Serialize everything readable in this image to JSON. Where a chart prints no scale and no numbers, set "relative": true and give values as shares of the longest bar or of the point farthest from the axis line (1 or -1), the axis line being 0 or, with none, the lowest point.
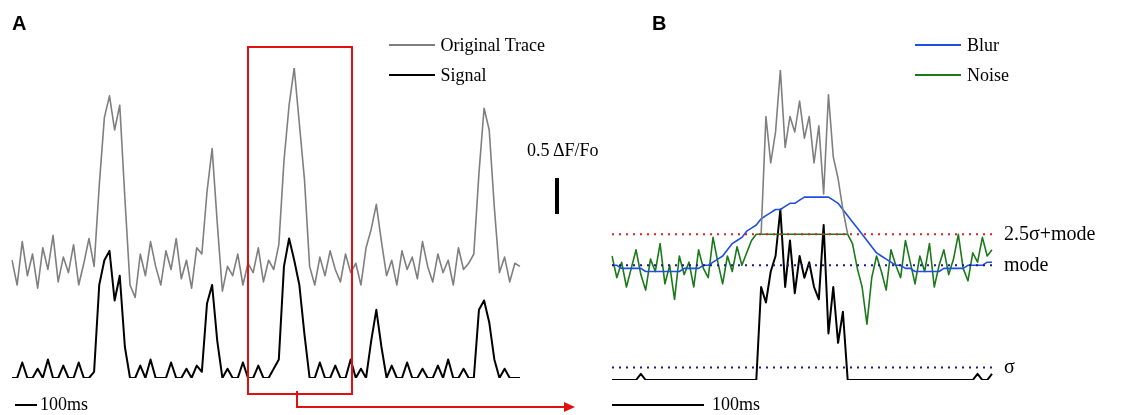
{
  "chart_data": [
    {
      "type": "line",
      "title": "A",
      "relative": true,
      "marker": "none",
      "legend": "top right",
      "categories": [
        null,
        null,
        null,
        null,
        null,
        null,
        null,
        null,
        null,
        null,
        null,
        null,
        null,
        null,
        null,
        null,
        null,
        null,
        null,
        null,
        null,
        null,
        null,
        null,
        null,
        null,
        null,
        null,
        null,
        null,
        null,
        null,
        null,
        null,
        null,
        null,
        null,
        null,
        null,
        null,
        null,
        null,
        null,
        null,
        null,
        null,
        null,
        null,
        null,
        null,
        null,
        null,
        null,
        null,
        null,
        null,
        null,
        null,
        null,
        null,
        null,
        null,
        null,
        null,
        null,
        null,
        null,
        null,
        null,
        null,
        null,
        null,
        null,
        null,
        null,
        null,
        null,
        null,
        null,
        null,
        null,
        null,
        null,
        null,
        null,
        null,
        null,
        null,
        null,
        null,
        null,
        null,
        null,
        null,
        null,
        null,
        null,
        null,
        null,
        null
      ],
      "series": [
        {
          "name": "Original Trace",
          "color": "#7f7f7f",
          "values": [
            0.38,
            0.3,
            0.44,
            0.33,
            0.4,
            0.29,
            0.42,
            0.35,
            0.46,
            0.31,
            0.39,
            0.34,
            0.43,
            0.3,
            0.37,
            0.45,
            0.36,
            0.62,
            0.84,
            0.91,
            0.8,
            0.88,
            0.58,
            0.3,
            0.26,
            0.4,
            0.33,
            0.44,
            0.36,
            0.3,
            0.41,
            0.35,
            0.45,
            0.32,
            0.38,
            0.29,
            0.42,
            0.4,
            0.6,
            0.74,
            0.5,
            0.28,
            0.36,
            0.33,
            0.4,
            0.3,
            0.37,
            0.34,
            0.42,
            0.31,
            0.38,
            0.35,
            0.43,
            0.7,
            0.88,
            1.0,
            0.82,
            0.64,
            0.36,
            0.3,
            0.39,
            0.33,
            0.41,
            0.35,
            0.31,
            0.4,
            0.34,
            0.37,
            0.3,
            0.42,
            0.48,
            0.56,
            0.44,
            0.33,
            0.38,
            0.3,
            0.41,
            0.35,
            0.39,
            0.32,
            0.44,
            0.36,
            0.31,
            0.4,
            0.34,
            0.38,
            0.3,
            0.42,
            0.35,
            0.37,
            0.4,
            0.66,
            0.87,
            0.8,
            0.55,
            0.34,
            0.39,
            0.31,
            0.37,
            0.36
          ]
        },
        {
          "name": "Signal",
          "color": "#000000",
          "values": [
            0,
            0,
            0.05,
            0,
            0,
            0.03,
            0,
            0.06,
            0,
            0,
            0.04,
            0,
            0,
            0.05,
            0,
            0,
            0.02,
            0.3,
            0.38,
            0.41,
            0.25,
            0.33,
            0.1,
            0,
            0,
            0.04,
            0,
            0.06,
            0,
            0,
            0,
            0.05,
            0,
            0,
            0.03,
            0,
            0.04,
            0.02,
            0.24,
            0.3,
            0.12,
            0,
            0.03,
            0,
            0,
            0.05,
            0,
            0,
            0.04,
            0,
            0,
            0.03,
            0.06,
            0.36,
            0.45,
            0.38,
            0.3,
            0.14,
            0,
            0,
            0.05,
            0,
            0,
            0.04,
            0,
            0,
            0.06,
            0,
            0.03,
            0,
            0.12,
            0.22,
            0.1,
            0,
            0.04,
            0,
            0,
            0.05,
            0,
            0,
            0.03,
            0,
            0,
            0.04,
            0,
            0.06,
            0,
            0,
            0.03,
            0,
            0,
            0.22,
            0.25,
            0.18,
            0.06,
            0,
            0.03,
            0,
            0,
            0
          ]
        }
      ],
      "annotations": [
        "0.5 ΔF/Fo",
        "100ms"
      ]
    },
    {
      "type": "line",
      "title": "B",
      "relative": true,
      "marker": "none",
      "legend": "top right",
      "categories": [
        null,
        null,
        null,
        null,
        null,
        null,
        null,
        null,
        null,
        null,
        null,
        null,
        null,
        null,
        null,
        null,
        null,
        null,
        null,
        null,
        null,
        null,
        null,
        null,
        null,
        null,
        null,
        null,
        null,
        null,
        null,
        null,
        null,
        null,
        null,
        null,
        null,
        null,
        null,
        null,
        null,
        null,
        null,
        null,
        null,
        null,
        null,
        null,
        null,
        null,
        null,
        null,
        null,
        null,
        null,
        null,
        null,
        null,
        null,
        null,
        null,
        null,
        null,
        null,
        null,
        null,
        null,
        null,
        null,
        null,
        null,
        null,
        null,
        null,
        null,
        null,
        null,
        null,
        null,
        null
      ],
      "series": [
        {
          "color": "#7f7f7f",
          "values": [
            null,
            null,
            null,
            null,
            null,
            null,
            null,
            null,
            null,
            null,
            null,
            null,
            null,
            null,
            null,
            null,
            null,
            null,
            null,
            null,
            null,
            null,
            null,
            null,
            null,
            null,
            null,
            null,
            null,
            null,
            null,
            0.47,
            0.85,
            0.7,
            0.8,
            1.0,
            0.75,
            0.85,
            0.8,
            0.9,
            0.78,
            0.85,
            0.7,
            0.82,
            0.6,
            0.92,
            0.72,
            0.65,
            0.55,
            0.47,
            null,
            null,
            null,
            null,
            null,
            null,
            null,
            null,
            null,
            null,
            null,
            null,
            null,
            null,
            null,
            null,
            null,
            null,
            null,
            null,
            null,
            null,
            null,
            null,
            null,
            null,
            null,
            null,
            null,
            null
          ]
        },
        {
          "name": "Blur",
          "color": "#1f4fe0",
          "values": [
            0.37,
            0.37,
            0.36,
            0.36,
            0.36,
            0.36,
            0.36,
            0.35,
            0.35,
            0.35,
            0.35,
            0.35,
            0.35,
            0.35,
            0.35,
            0.36,
            0.36,
            0.36,
            0.36,
            0.37,
            0.37,
            0.38,
            0.39,
            0.4,
            0.42,
            0.44,
            0.45,
            0.46,
            0.48,
            0.49,
            0.5,
            0.52,
            0.53,
            0.54,
            0.55,
            0.55,
            0.56,
            0.57,
            0.57,
            0.58,
            0.59,
            0.59,
            0.59,
            0.59,
            0.59,
            0.59,
            0.58,
            0.57,
            0.55,
            0.53,
            0.51,
            0.49,
            0.47,
            0.45,
            0.43,
            0.41,
            0.4,
            0.39,
            0.38,
            0.37,
            0.37,
            0.36,
            0.36,
            0.35,
            0.35,
            0.35,
            0.35,
            0.35,
            0.35,
            0.36,
            0.36,
            0.36,
            0.36,
            0.36,
            0.37,
            0.37,
            0.37,
            0.37,
            0.38,
            0.38
          ]
        },
        {
          "name": "Noise",
          "color": "#1a7a1a",
          "values": [
            0.4,
            0.33,
            0.38,
            0.3,
            0.36,
            0.42,
            0.34,
            0.29,
            0.39,
            0.35,
            0.44,
            0.31,
            0.37,
            0.26,
            0.4,
            0.34,
            0.38,
            0.3,
            0.42,
            0.36,
            0.33,
            0.46,
            0.38,
            0.31,
            0.4,
            0.35,
            0.43,
            0.37,
            0.41,
            0.45,
            0.47,
            0.47,
            0.47,
            0.47,
            0.47,
            0.47,
            0.47,
            0.47,
            0.47,
            0.47,
            0.47,
            0.47,
            0.47,
            0.47,
            0.47,
            0.47,
            0.47,
            0.47,
            0.47,
            0.47,
            0.44,
            0.36,
            0.3,
            0.18,
            0.33,
            0.4,
            0.35,
            0.29,
            0.42,
            0.37,
            0.33,
            0.45,
            0.38,
            0.31,
            0.4,
            0.35,
            0.44,
            0.3,
            0.37,
            0.42,
            0.34,
            0.39,
            0.47,
            0.36,
            0.32,
            0.41,
            0.38,
            0.46,
            0.4,
            0.42
          ]
        },
        {
          "color": "#000000",
          "values": [
            0,
            0,
            0,
            0,
            0,
            0,
            0.02,
            0,
            0,
            0,
            0,
            0,
            0,
            0,
            0,
            0,
            0,
            0,
            0,
            0,
            0,
            0,
            0,
            0,
            0,
            0,
            0,
            0,
            0,
            0,
            0,
            0.3,
            0.25,
            0.35,
            0.4,
            0.55,
            0.3,
            0.45,
            0.28,
            0.4,
            0.33,
            0.38,
            0.3,
            0.26,
            0.5,
            0.15,
            0.3,
            0.12,
            0.22,
            0,
            0,
            0,
            0,
            0,
            0,
            0,
            0,
            0,
            0,
            0,
            0,
            0,
            0,
            0,
            0,
            0,
            0,
            0,
            0,
            0,
            0,
            0,
            0,
            0,
            0,
            0,
            0.02,
            0,
            0,
            0.02
          ]
        }
      ],
      "ref_lines": [
        {
          "axis": "y",
          "value": 0.47,
          "label": "2.5σ+mode",
          "color": "#e02020",
          "line_style": "dotted"
        },
        {
          "axis": "y",
          "value": 0.37,
          "label": "mode",
          "color": "#1a1a8a",
          "line_style": "dotted"
        },
        {
          "axis": "y",
          "value": 0.04,
          "label": "σ",
          "color": "#1a1a8a",
          "line_style": "dotted"
        }
      ],
      "annotations": [
        "100ms"
      ]
    }
  ]
}
